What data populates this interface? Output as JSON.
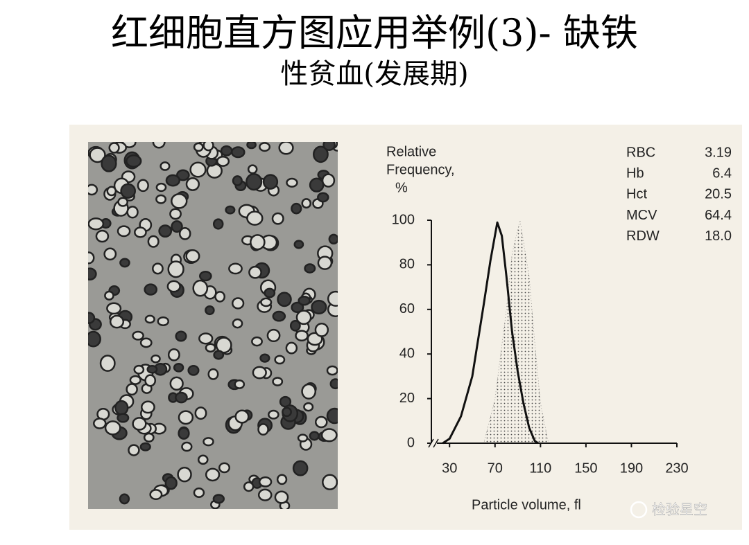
{
  "slide": {
    "title_lines": [
      "红细胞直方图应用举例(3)- 缺铁",
      "性贫血(发展期)"
    ],
    "watermark": "检验星空"
  },
  "indices": [
    {
      "name": "RBC",
      "value": "3.19"
    },
    {
      "name": "Hb",
      "value": "6.4"
    },
    {
      "name": "Hct",
      "value": "20.5"
    },
    {
      "name": "MCV",
      "value": "64.4"
    },
    {
      "name": "RDW",
      "value": "18.0"
    }
  ],
  "chart_data": {
    "type": "line",
    "ylabel": [
      "Relative",
      "Frequency,",
      "%"
    ],
    "xlabel": "Particle volume, fl",
    "xlim": [
      14,
      230
    ],
    "xticks": [
      30,
      70,
      110,
      150,
      190,
      230
    ],
    "ylim": [
      0,
      100
    ],
    "yticks": [
      0,
      20,
      40,
      60,
      80,
      100
    ],
    "series": [
      {
        "color": "#111111",
        "style": "solid",
        "x": [
          24,
          30,
          40,
          50,
          60,
          66,
          72,
          76,
          80,
          85,
          90,
          95,
          100,
          105,
          108
        ],
        "values": [
          0,
          2,
          12,
          30,
          62,
          82,
          99,
          93,
          75,
          50,
          32,
          18,
          7,
          1,
          0
        ]
      },
      {
        "color": "#555555",
        "style": "dotted-area",
        "x": [
          60,
          70,
          80,
          85,
          92,
          100,
          105,
          110,
          117
        ],
        "values": [
          0,
          20,
          60,
          85,
          100,
          75,
          45,
          18,
          0
        ]
      }
    ]
  }
}
